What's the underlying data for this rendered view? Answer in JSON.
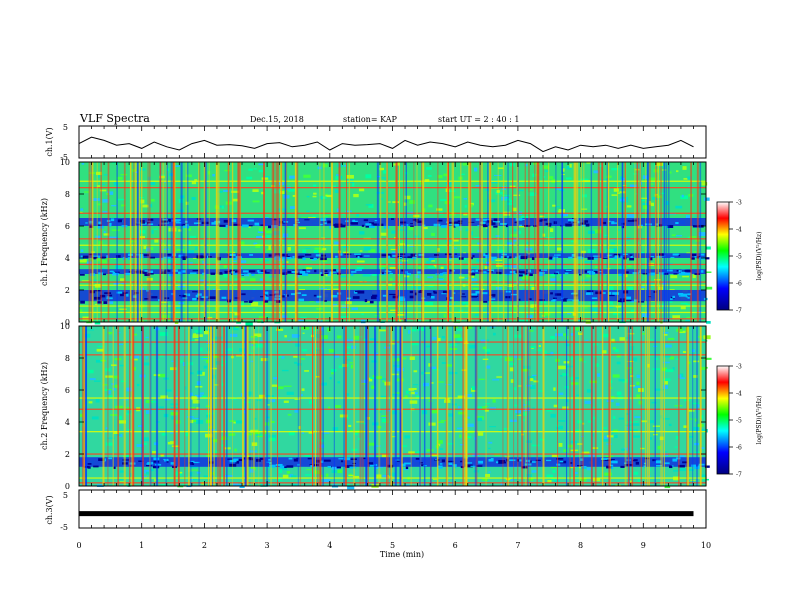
{
  "header": {
    "title": "VLF Spectra",
    "date": "Dec.15, 2018",
    "station": "station= KAP",
    "start": "start  UT =   2 : 40 : 1"
  },
  "chart_data": {
    "type": "heatmap",
    "xlabel": "Time (min)",
    "xlim": [
      0,
      10
    ],
    "x_ticks": [
      "0",
      "1",
      "2",
      "3",
      "4",
      "5",
      "6",
      "7",
      "8",
      "9",
      "10"
    ],
    "panels": [
      {
        "name": "ch.1(V)",
        "type": "line",
        "ylabel": "ch.1(V)",
        "ylim": [
          -5,
          5
        ],
        "y_ticks": [
          "5",
          "-5"
        ],
        "x": [
          0,
          0.2,
          0.4,
          0.6,
          0.8,
          1.0,
          1.2,
          1.4,
          1.6,
          1.8,
          2.0,
          2.2,
          2.4,
          2.6,
          2.8,
          3.0,
          3.2,
          3.4,
          3.6,
          3.8,
          4.0,
          4.2,
          4.4,
          4.6,
          4.8,
          5.0,
          5.2,
          5.4,
          5.6,
          5.8,
          6.0,
          6.2,
          6.4,
          6.6,
          6.8,
          7.0,
          7.2,
          7.4,
          7.6,
          7.8,
          8.0,
          8.2,
          8.4,
          8.6,
          8.8,
          9.0,
          9.2,
          9.4,
          9.6,
          9.8
        ],
        "values": [
          -0.5,
          1.5,
          0.5,
          -1.0,
          -0.5,
          -2.0,
          0.0,
          -1.5,
          -2.5,
          -0.5,
          0.5,
          -1.0,
          -0.8,
          -1.2,
          -2.0,
          -0.5,
          -0.2,
          -1.5,
          -1.0,
          0.0,
          -2.5,
          -0.5,
          -1.0,
          -0.8,
          -0.5,
          -2.0,
          0.5,
          -1.0,
          0.0,
          -0.5,
          -1.5,
          0.0,
          -1.0,
          -1.5,
          -1.0,
          0.5,
          -0.5,
          -3.0,
          -1.5,
          -2.5,
          -1.0,
          -1.5,
          -1.0,
          -2.0,
          -1.0,
          -2.0,
          -1.5,
          -1.0,
          0.5,
          -1.5
        ]
      },
      {
        "name": "ch.1",
        "type": "heatmap",
        "ylabel": "ch.1 Frequency (kHz)",
        "ylim": [
          0,
          10
        ],
        "y_ticks": [
          "0",
          "2",
          "4",
          "6",
          "8",
          "10"
        ],
        "colorbar": {
          "label": "log(PSD)(V²/Hz)",
          "ticks": [
            "-3",
            "-4",
            "-5",
            "-6",
            "-7"
          ],
          "range": [
            -7,
            -3
          ]
        },
        "dark_bands_khz": [
          [
            6.0,
            6.5
          ],
          [
            3.0,
            3.3
          ],
          [
            1.3,
            2.0
          ],
          [
            4.0,
            4.3
          ]
        ],
        "bright_lines_khz": [
          0.2,
          0.6,
          1.0,
          2.3,
          2.5,
          3.6,
          4.8,
          5.2,
          6.8,
          8.4,
          8.8
        ]
      },
      {
        "name": "ch.2",
        "type": "heatmap",
        "ylabel": "ch.2 Frequency (kHz)",
        "ylim": [
          0,
          10
        ],
        "y_ticks": [
          "0",
          "2",
          "4",
          "6",
          "8",
          "10"
        ],
        "colorbar": {
          "label": "log(PSD)(V²/Hz)",
          "ticks": [
            "-3",
            "-4",
            "-5",
            "-6",
            "-7"
          ],
          "range": [
            -7,
            -3
          ]
        },
        "dark_bands_khz": [
          [
            1.2,
            1.8
          ]
        ],
        "bright_lines_khz": [
          0.2,
          0.5,
          2.0,
          3.4,
          4.8,
          5.5,
          8.2,
          9.0
        ]
      },
      {
        "name": "ch.3(V)",
        "type": "line",
        "ylabel": "ch.3(V)",
        "ylim": [
          -5,
          5
        ],
        "y_ticks": [
          "5",
          "-5"
        ],
        "x": [
          0,
          9.8
        ],
        "values": [
          -1.2,
          -1.2
        ]
      }
    ]
  }
}
